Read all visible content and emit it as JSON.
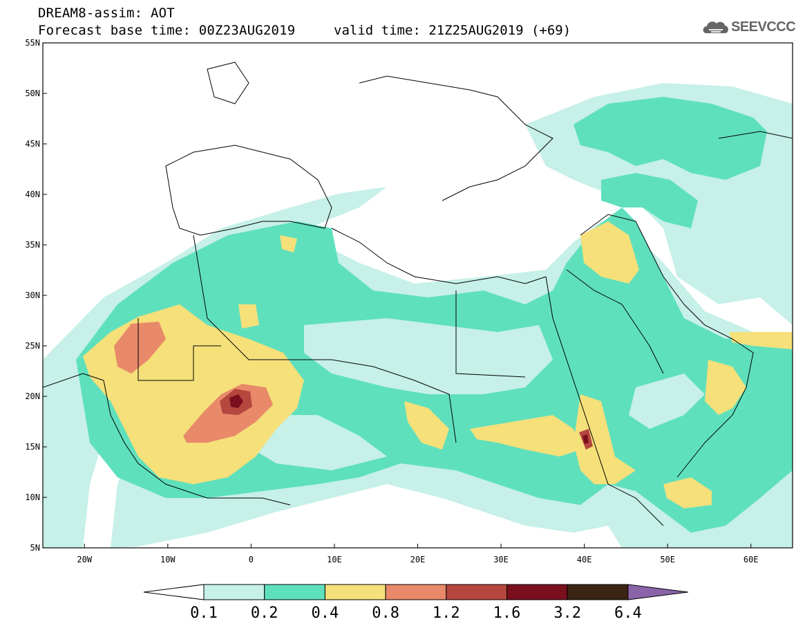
{
  "header": {
    "title": "DREAM8-assim: AOT",
    "base_time": "Forecast base time: 00Z23AUG2019",
    "valid_time": "valid time: 21Z25AUG2019 (+69)"
  },
  "logo": {
    "text": "SEEVCCC",
    "icon": "cloud-icon"
  },
  "map": {
    "lon_range": [
      -25,
      65
    ],
    "lat_range": [
      5,
      55
    ],
    "x_ticks": [
      {
        "value": -20,
        "label": "20W"
      },
      {
        "value": -10,
        "label": "10W"
      },
      {
        "value": 0,
        "label": "0"
      },
      {
        "value": 10,
        "label": "10E"
      },
      {
        "value": 20,
        "label": "20E"
      },
      {
        "value": 30,
        "label": "30E"
      },
      {
        "value": 40,
        "label": "40E"
      },
      {
        "value": 50,
        "label": "50E"
      },
      {
        "value": 60,
        "label": "60E"
      }
    ],
    "y_ticks": [
      {
        "value": 5,
        "label": "5N"
      },
      {
        "value": 10,
        "label": "10N"
      },
      {
        "value": 15,
        "label": "15N"
      },
      {
        "value": 20,
        "label": "20N"
      },
      {
        "value": 25,
        "label": "25N"
      },
      {
        "value": 30,
        "label": "30N"
      },
      {
        "value": 35,
        "label": "35N"
      },
      {
        "value": 40,
        "label": "40N"
      },
      {
        "value": 45,
        "label": "45N"
      },
      {
        "value": 50,
        "label": "50N"
      },
      {
        "value": 55,
        "label": "55N"
      }
    ]
  },
  "colorbar": {
    "labels": [
      "0.1",
      "0.2",
      "0.4",
      "0.8",
      "1.2",
      "1.6",
      "3.2",
      "6.4"
    ],
    "colors": [
      "#ffffff",
      "#c6f0e8",
      "#5fe0bd",
      "#f5e07a",
      "#e8896a",
      "#b5473f",
      "#7a0f1e",
      "#3c2414",
      "#8a64a8"
    ]
  }
}
